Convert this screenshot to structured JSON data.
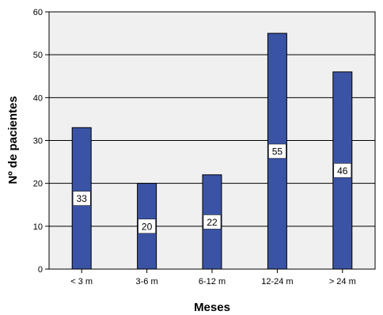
{
  "chart_data": {
    "type": "bar",
    "categories": [
      "< 3 m",
      "3-6 m",
      "6-12 m",
      "12-24 m",
      "> 24 m"
    ],
    "values": [
      33,
      20,
      22,
      55,
      46
    ],
    "data_labels": [
      "33",
      "20",
      "22",
      "55",
      "46"
    ],
    "xlabel": "Meses",
    "ylabel": "Nº de pacientes",
    "ylim": [
      0,
      60
    ],
    "yticks": [
      0,
      10,
      20,
      30,
      40,
      50,
      60
    ],
    "grid": "horizontal",
    "legend": "none",
    "colors": {
      "bar_fill": "#3A53A4",
      "bar_stroke": "#000000",
      "plot_background": "#F0F0F0",
      "gridline": "#000000",
      "label_box": "#FFFFFF"
    }
  }
}
